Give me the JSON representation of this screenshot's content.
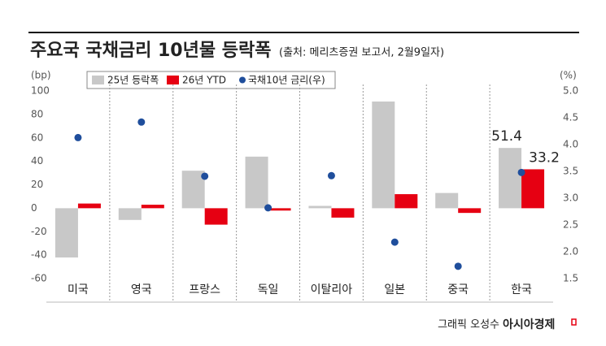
{
  "chart_data": {
    "type": "bar",
    "title": "주요국 국채금리 10년물 등락폭",
    "subtitle": "(출처: 메리츠증권 보고서, 2월9일자)",
    "y_label": "(bp)",
    "y2_label": "(%)",
    "categories": [
      "미국",
      "영국",
      "프랑스",
      "독일",
      "이탈리아",
      "일본",
      "중국",
      "한국"
    ],
    "series": [
      {
        "name": "25년 등락폭",
        "color": "#c8c8c8",
        "type": "bar",
        "values": [
          -42,
          -10,
          32,
          44,
          2,
          91,
          13,
          51.4
        ]
      },
      {
        "name": "26년 YTD",
        "color": "#e60012",
        "type": "bar",
        "values": [
          4,
          3,
          -14,
          -2,
          -8,
          12,
          -4,
          33.2
        ]
      },
      {
        "name": "국채10년 금리(우)",
        "color": "#1f4e9c",
        "type": "scatter",
        "axis": "y2",
        "values": [
          4.13,
          4.42,
          3.41,
          2.82,
          3.42,
          2.18,
          1.73,
          3.48
        ]
      }
    ],
    "ylim": [
      -60,
      100
    ],
    "yticks": [
      100,
      80,
      60,
      40,
      20,
      0,
      -20,
      -40,
      -60
    ],
    "y2lim": [
      1.5,
      5.0
    ],
    "y2ticks": [
      {
        "value": 5,
        "label": "5.0"
      },
      4.5,
      {
        "value": 4,
        "label": "4.0"
      },
      3.5,
      {
        "value": 3,
        "label": "3.0"
      },
      2.5,
      {
        "value": 2,
        "label": "2.0"
      },
      1.5
    ],
    "credit": "그래픽 오성수",
    "brand": "아시아경제"
  }
}
